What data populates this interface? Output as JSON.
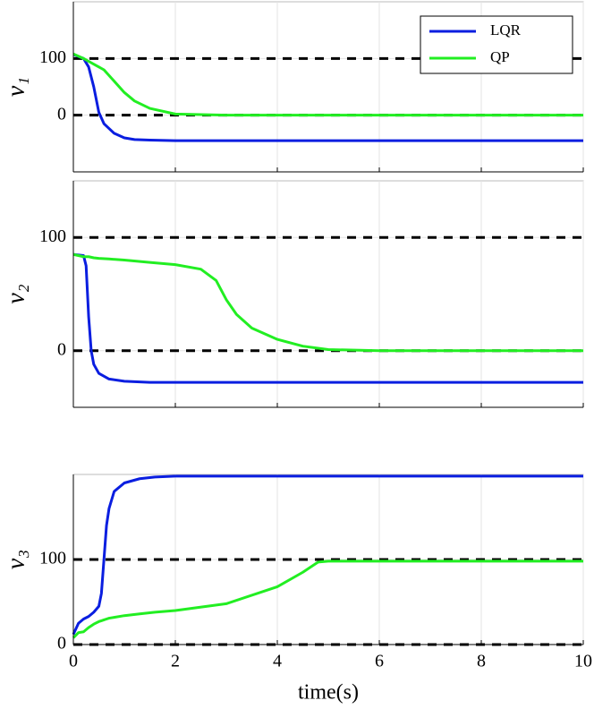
{
  "chart_data": [
    {
      "type": "line",
      "ylabel": "v₁",
      "x": [
        0,
        0.2,
        0.3,
        0.4,
        0.5,
        0.6,
        0.8,
        1,
        1.2,
        1.5,
        2,
        3,
        5,
        10
      ],
      "series": [
        {
          "name": "LQR",
          "color": "#0a1ee0",
          "values": [
            107,
            100,
            85,
            50,
            5,
            -15,
            -32,
            -40,
            -43,
            -44,
            -45,
            -45,
            -45,
            -45
          ]
        },
        {
          "name": "QP",
          "color": "#22ee22",
          "values": [
            108,
            100,
            95,
            90,
            85,
            80,
            60,
            40,
            25,
            12,
            2,
            0,
            0,
            0
          ]
        }
      ],
      "xlim": [
        0,
        10
      ],
      "xticks": [
        0,
        2,
        4,
        6,
        8,
        10
      ],
      "show_xtick_labels": false,
      "ylim": [
        -100,
        200
      ],
      "yticks": [
        0,
        100
      ],
      "hlines": [
        0,
        100
      ],
      "grid": true,
      "legend": "upper right"
    },
    {
      "type": "line",
      "ylabel": "v₂",
      "x": [
        0,
        0.2,
        0.25,
        0.3,
        0.35,
        0.4,
        0.5,
        0.7,
        1,
        1.5,
        2,
        2.5,
        2.8,
        3,
        3.2,
        3.5,
        4,
        4.5,
        5,
        6,
        10
      ],
      "series": [
        {
          "name": "LQR",
          "color": "#0a1ee0",
          "values": [
            85,
            84,
            75,
            30,
            0,
            -12,
            -20,
            -25,
            -27,
            -28,
            -28,
            -28,
            -28,
            -28,
            -28,
            -28,
            -28,
            -28,
            -28,
            -28,
            -28
          ]
        },
        {
          "name": "QP",
          "color": "#22ee22",
          "values": [
            85,
            83,
            83,
            83,
            82.5,
            82,
            81.5,
            81,
            80,
            78,
            76,
            72,
            62,
            45,
            32,
            20,
            10,
            4,
            1,
            0,
            0
          ]
        }
      ],
      "xlim": [
        0,
        10
      ],
      "xticks": [
        0,
        2,
        4,
        6,
        8,
        10
      ],
      "show_xtick_labels": false,
      "ylim": [
        -50,
        150
      ],
      "yticks": [
        0,
        100
      ],
      "hlines": [
        0,
        100
      ],
      "grid": true
    },
    {
      "type": "line",
      "ylabel": "v₃",
      "xlabel": "time(s)",
      "x": [
        0,
        0.1,
        0.2,
        0.3,
        0.4,
        0.5,
        0.55,
        0.6,
        0.65,
        0.7,
        0.8,
        1,
        1.3,
        1.6,
        2,
        3,
        4,
        4.5,
        4.8,
        5,
        10
      ],
      "series": [
        {
          "name": "LQR",
          "color": "#0a1ee0",
          "values": [
            12,
            25,
            30,
            33,
            38,
            45,
            60,
            100,
            140,
            160,
            180,
            190,
            195,
            197,
            198,
            198,
            198,
            198,
            198,
            198,
            198
          ]
        },
        {
          "name": "QP",
          "color": "#22ee22",
          "values": [
            8,
            14,
            15,
            20,
            24,
            27,
            28,
            29,
            30,
            31,
            32,
            34,
            36,
            38,
            40,
            48,
            68,
            85,
            97,
            98,
            98
          ]
        }
      ],
      "xlim": [
        0,
        10
      ],
      "xticks": [
        0,
        2,
        4,
        6,
        8,
        10
      ],
      "show_xtick_labels": true,
      "ylim": [
        0,
        200
      ],
      "yticks": [
        0,
        100
      ],
      "hlines": [
        0,
        100
      ],
      "grid": true
    }
  ]
}
